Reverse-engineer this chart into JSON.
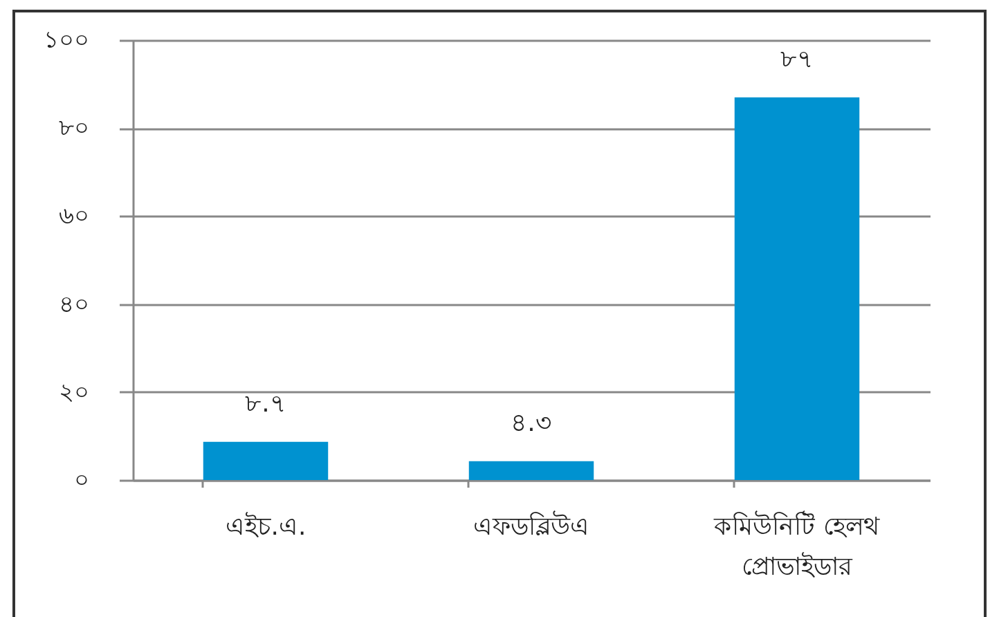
{
  "chart_data": {
    "type": "bar",
    "categories": [
      "এইচ.এ.",
      "এফডব্লিউএ",
      "কমিউনিটি হেলথ প্রোভাইডার"
    ],
    "values": [
      8.7,
      4.3,
      87
    ],
    "value_labels": [
      "৮.৭",
      "৪.৩",
      "৮৭"
    ],
    "color": "#0092d0",
    "ylim": [
      0,
      100
    ],
    "yticks": [
      {
        "value": 0,
        "label": "০"
      },
      {
        "value": 20,
        "label": "২০"
      },
      {
        "value": 40,
        "label": "৪০"
      },
      {
        "value": 60,
        "label": "৬০"
      },
      {
        "value": 80,
        "label": "৮০"
      },
      {
        "value": 100,
        "label": "১০০"
      }
    ],
    "grid": "y"
  }
}
